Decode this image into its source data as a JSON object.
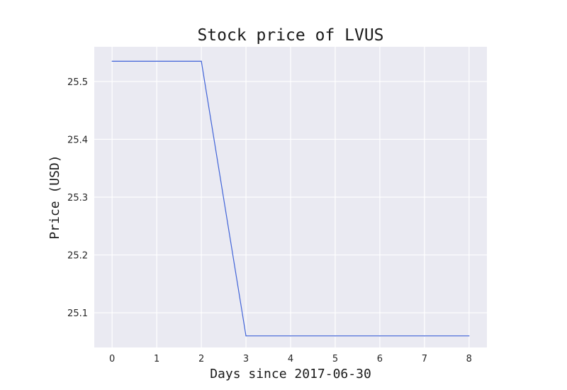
{
  "chart_data": {
    "type": "line",
    "title": "Stock price of LVUS",
    "xlabel": "Days since 2017-06-30",
    "ylabel": "Price (USD)",
    "xlim": [
      -0.4,
      8.4
    ],
    "ylim": [
      25.04,
      25.56
    ],
    "x_ticks": [
      0,
      1,
      2,
      3,
      4,
      5,
      6,
      7,
      8
    ],
    "y_ticks": [
      25.1,
      25.2,
      25.3,
      25.4,
      25.5
    ],
    "y_tick_labels": [
      "25.1",
      "25.2",
      "25.3",
      "25.4",
      "25.5"
    ],
    "grid": true,
    "series": [
      {
        "color": "#4063d8",
        "x": [
          0,
          1,
          2,
          3,
          4,
          5,
          6,
          7,
          8
        ],
        "y": [
          25.535,
          25.535,
          25.535,
          25.06,
          25.06,
          25.06,
          25.06,
          25.06,
          25.06
        ]
      }
    ]
  }
}
